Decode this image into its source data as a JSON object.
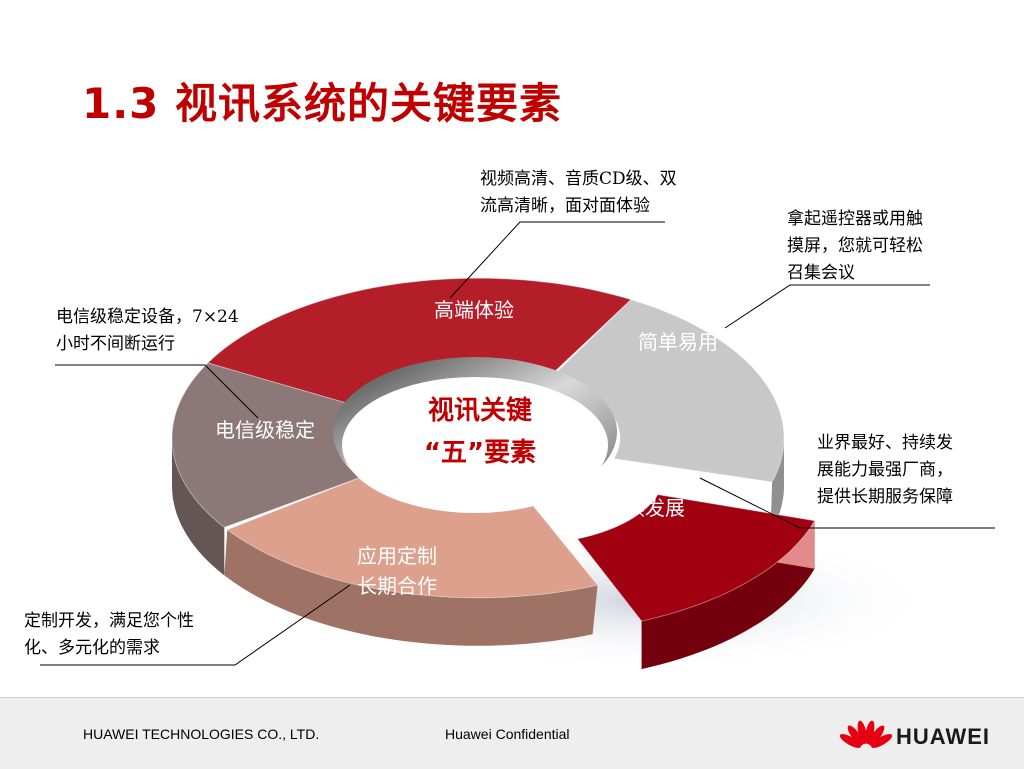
{
  "title": "1.3 视讯系统的关键要素",
  "center": {
    "line1": "视讯关键",
    "line2": "“五”要素"
  },
  "segments": [
    {
      "label": "高端体验",
      "color": "#b41e28"
    },
    {
      "label": "简单易用",
      "color": "#c8c8c8"
    },
    {
      "label": "长期保障\n持续发展",
      "color": "#a00010"
    },
    {
      "label": "应用定制\n长期合作",
      "color": "#dca08c"
    },
    {
      "label": "电信级稳定",
      "color": "#8c7878"
    }
  ],
  "callouts": [
    {
      "text": "视频高清、音质CD级、双\n流高清晰，面对面体验"
    },
    {
      "text": "拿起遥控器或用触\n摸屏，您就可轻松\n召集会议"
    },
    {
      "text": "电信级稳定设备，7×24\n小时不间断运行"
    },
    {
      "text": "业界最好、持续发\n展能力最强厂商，\n提供长期服务保障"
    },
    {
      "text": "定制开发，满足您个性\n化、多元化的需求"
    }
  ],
  "footer": {
    "company": "HUAWEI TECHNOLOGIES CO., LTD.",
    "confidential": "Huawei Confidential",
    "logo_text": "HUAWEI",
    "logo_color": "#e60012"
  }
}
